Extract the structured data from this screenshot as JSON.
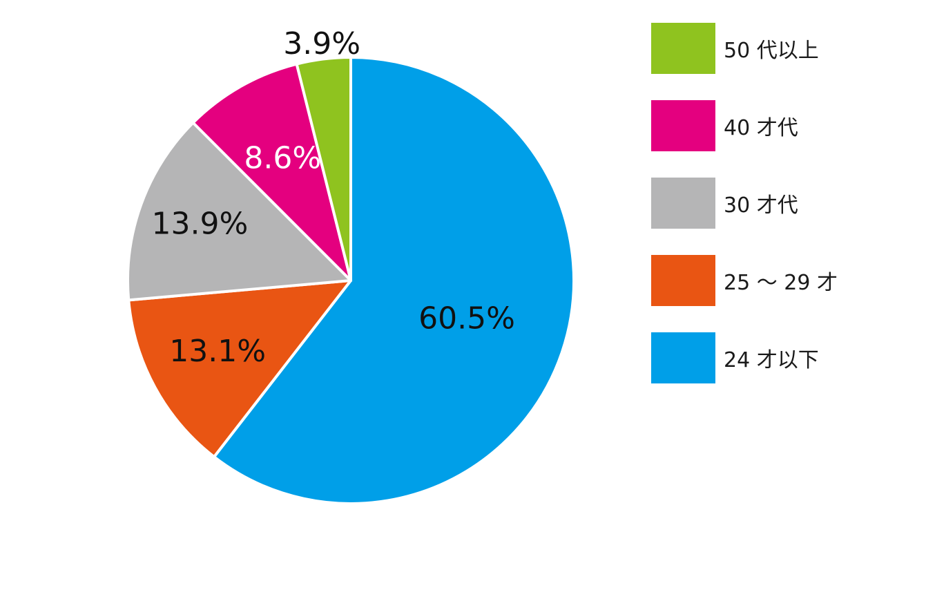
{
  "chart_data": {
    "type": "pie",
    "title": "",
    "start_angle_deg": 0,
    "direction": "clockwise",
    "slices": [
      {
        "label": "24 才以下",
        "value": 60.5,
        "display": "60.5%",
        "color": "#009fe8",
        "label_color": "#111111"
      },
      {
        "label": "25 ～ 29 才",
        "value": 13.1,
        "display": "13.1%",
        "color": "#e95513",
        "label_color": "#111111"
      },
      {
        "label": "30 才代",
        "value": 13.9,
        "display": "13.9%",
        "color": "#b5b5b6",
        "label_color": "#111111"
      },
      {
        "label": "40 才代",
        "value": 8.6,
        "display": "8.6%",
        "color": "#e4007f",
        "label_color": "#ffffff"
      },
      {
        "label": "50 代以上",
        "value": 3.9,
        "display": "3.9%",
        "color": "#8fc31f",
        "label_color": "#111111"
      }
    ],
    "legend": {
      "placement": "right",
      "order": [
        "50 代以上",
        "40 才代",
        "30 才代",
        "25 ～ 29 才",
        "24 才以下"
      ]
    }
  }
}
